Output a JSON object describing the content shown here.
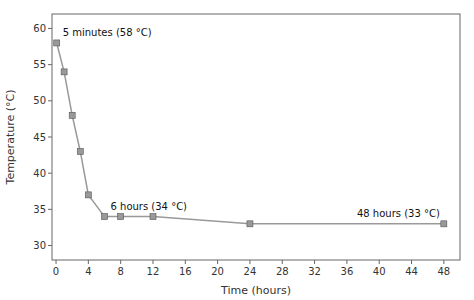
{
  "chart_data": {
    "type": "line",
    "x": [
      0.083,
      1,
      2,
      3,
      4,
      6,
      8,
      12,
      24,
      48
    ],
    "values": [
      58,
      54,
      48,
      43,
      37,
      34,
      34,
      34,
      33,
      33
    ],
    "color": "#999999",
    "marker": "square",
    "xlabel": "Time (hours)",
    "ylabel": "Temperature (°C)",
    "xlim": [
      -0.5,
      50
    ],
    "ylim": [
      28,
      62
    ],
    "xticks": [
      0,
      4,
      8,
      12,
      16,
      20,
      24,
      28,
      32,
      36,
      40,
      44,
      48
    ],
    "yticks": [
      30,
      35,
      40,
      45,
      50,
      55,
      60
    ],
    "grid": false,
    "annotations": [
      {
        "text": "5 minutes (58 °C)",
        "x": 0.083,
        "y": 58
      },
      {
        "text": "6 hours (34 °C)",
        "x": 6,
        "y": 34
      },
      {
        "text": "48 hours (33 °C)",
        "x": 48,
        "y": 33
      }
    ]
  }
}
